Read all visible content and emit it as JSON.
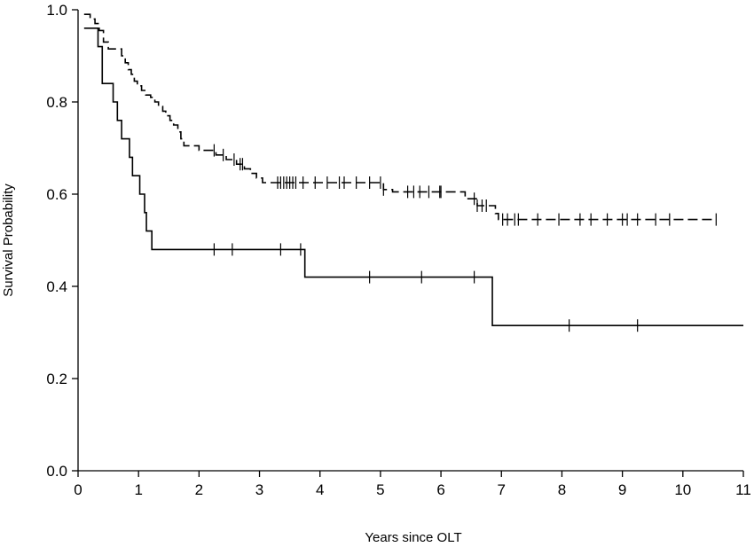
{
  "chart_data": {
    "type": "line",
    "title": "",
    "xlabel": "Years since OLT",
    "ylabel": "Survival Probability",
    "xlim": [
      0,
      11
    ],
    "ylim": [
      0,
      1
    ],
    "x_ticks": [
      0,
      1,
      2,
      3,
      4,
      5,
      6,
      7,
      8,
      9,
      10,
      11
    ],
    "x_tick_labels": [
      "0",
      "1",
      "2",
      "3",
      "4",
      "5",
      "6",
      "7",
      "8",
      "9",
      "10",
      "11"
    ],
    "y_ticks": [
      0,
      0.2,
      0.4,
      0.6,
      0.8,
      1
    ],
    "y_tick_labels": [
      "0.0",
      "0.2",
      "0.4",
      "0.6",
      "0.8",
      "1.0"
    ],
    "grid": false,
    "legend": "none",
    "series": [
      {
        "line_style": "dashed",
        "steps": [
          [
            0.1,
            0.99
          ],
          [
            0.2,
            0.98
          ],
          [
            0.28,
            0.97
          ],
          [
            0.35,
            0.955
          ],
          [
            0.42,
            0.93
          ],
          [
            0.5,
            0.915
          ],
          [
            0.72,
            0.9
          ],
          [
            0.78,
            0.885
          ],
          [
            0.83,
            0.87
          ],
          [
            0.88,
            0.86
          ],
          [
            0.93,
            0.845
          ],
          [
            0.98,
            0.835
          ],
          [
            1.05,
            0.825
          ],
          [
            1.12,
            0.815
          ],
          [
            1.2,
            0.81
          ],
          [
            1.27,
            0.8
          ],
          [
            1.33,
            0.79
          ],
          [
            1.4,
            0.78
          ],
          [
            1.45,
            0.77
          ],
          [
            1.52,
            0.76
          ],
          [
            1.58,
            0.75
          ],
          [
            1.65,
            0.735
          ],
          [
            1.7,
            0.72
          ],
          [
            1.75,
            0.705
          ],
          [
            2.0,
            0.695
          ],
          [
            2.28,
            0.685
          ],
          [
            2.45,
            0.675
          ],
          [
            2.62,
            0.665
          ],
          [
            2.75,
            0.655
          ],
          [
            2.85,
            0.645
          ],
          [
            2.95,
            0.635
          ],
          [
            3.05,
            0.625
          ],
          [
            5.05,
            0.61
          ],
          [
            5.2,
            0.605
          ],
          [
            6.4,
            0.59
          ],
          [
            6.6,
            0.575
          ],
          [
            6.9,
            0.558
          ],
          [
            6.95,
            0.545
          ],
          [
            10.55,
            0.545
          ]
        ],
        "censored_x": [
          2.25,
          2.4,
          2.58,
          2.68,
          2.72,
          3.3,
          3.35,
          3.4,
          3.45,
          3.5,
          3.55,
          3.6,
          3.72,
          3.92,
          4.12,
          4.32,
          4.4,
          4.6,
          4.82,
          5.0,
          5.05,
          5.45,
          5.55,
          5.65,
          5.8,
          5.98,
          6.0,
          6.55,
          6.6,
          6.68,
          6.75,
          7.02,
          7.1,
          7.22,
          7.28,
          7.6,
          7.95,
          8.3,
          8.48,
          8.75,
          9.0,
          9.08,
          9.25,
          9.55,
          9.78,
          10.55
        ]
      },
      {
        "line_style": "solid",
        "steps": [
          [
            0.1,
            0.96
          ],
          [
            0.33,
            0.92
          ],
          [
            0.4,
            0.84
          ],
          [
            0.58,
            0.8
          ],
          [
            0.65,
            0.76
          ],
          [
            0.72,
            0.72
          ],
          [
            0.85,
            0.68
          ],
          [
            0.9,
            0.64
          ],
          [
            1.02,
            0.6
          ],
          [
            1.1,
            0.56
          ],
          [
            1.13,
            0.52
          ],
          [
            1.22,
            0.48
          ],
          [
            3.75,
            0.42
          ],
          [
            6.85,
            0.315
          ],
          [
            11.0,
            0.315
          ]
        ],
        "censored_x": [
          2.25,
          2.55,
          3.35,
          3.68,
          4.82,
          5.68,
          6.55,
          8.12,
          9.25
        ]
      }
    ]
  }
}
